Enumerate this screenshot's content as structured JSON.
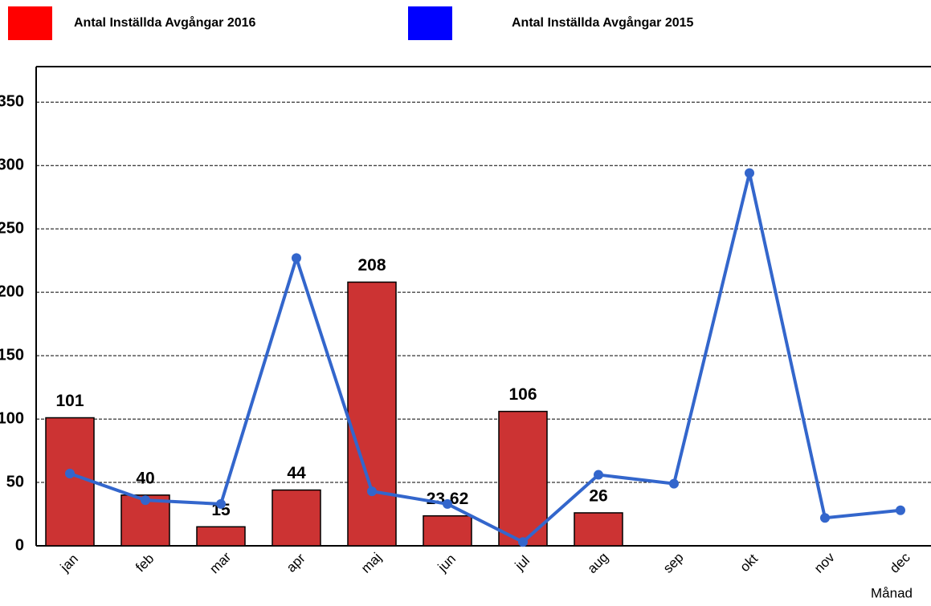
{
  "chart_data": {
    "type": "bar-line",
    "x_label": "Månad",
    "categories": [
      "jan",
      "feb",
      "mar",
      "apr",
      "maj",
      "jun",
      "jul",
      "aug",
      "sep",
      "okt",
      "nov",
      "dec"
    ],
    "series": [
      {
        "name": "Antal Inställda Avgångar 2016",
        "type": "bar",
        "color": "#cc3333",
        "legend_color": "#ff0000",
        "values": [
          101,
          40,
          15,
          44,
          208,
          23.62,
          106,
          26,
          null,
          null,
          null,
          null
        ]
      },
      {
        "name": "Antal Inställda Avgångar 2015",
        "type": "line",
        "color": "#3366cc",
        "legend_color": "#0000ff",
        "values": [
          57,
          36,
          33,
          227,
          43,
          33,
          3,
          56,
          49,
          294,
          22,
          28
        ]
      }
    ],
    "ylim": [
      0,
      378
    ],
    "yticks": [
      0,
      50,
      100,
      150,
      200,
      250,
      300,
      350
    ],
    "grid": true
  }
}
